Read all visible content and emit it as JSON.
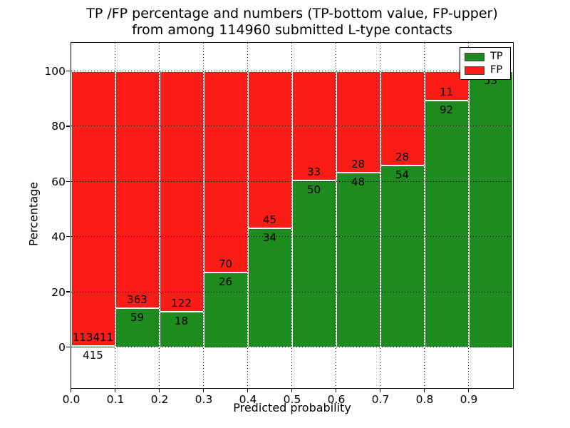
{
  "figure": {
    "title_line1": "TP /FP percentage and numbers (TP-bottom value, FP-upper)",
    "title_line2": "from among 114960 submitted L-type contacts",
    "xlabel": "Predicted probability",
    "ylabel": "Percentage"
  },
  "legend": {
    "items": [
      {
        "label": "TP",
        "color": "#1e8b1e"
      },
      {
        "label": "FP",
        "color": "#fb1d15"
      }
    ]
  },
  "chart_data": {
    "type": "bar",
    "subtype": "stacked-percentage",
    "title": "TP /FP percentage and numbers (TP-bottom value, FP-upper) from among 114960 submitted L-type contacts",
    "xlabel": "Predicted probability",
    "ylabel": "Percentage",
    "total_contacts": 114960,
    "bin_width": 0.1,
    "x_bins_start": [
      0.0,
      0.1,
      0.2,
      0.3,
      0.4,
      0.5,
      0.6,
      0.7,
      0.8,
      0.9
    ],
    "x_tick_labels": [
      "0.0",
      "0.1",
      "0.2",
      "0.3",
      "0.4",
      "0.5",
      "0.6",
      "0.7",
      "0.8",
      "0.9"
    ],
    "y_ticks": [
      0,
      20,
      40,
      60,
      80,
      100
    ],
    "ylim": [
      -14.5,
      110.5
    ],
    "grid": "dotted",
    "legend_position": "upper-right",
    "series": [
      {
        "name": "TP",
        "color": "#1e8b1e",
        "counts": [
          415,
          59,
          18,
          26,
          34,
          50,
          48,
          54,
          92,
          53
        ]
      },
      {
        "name": "FP",
        "color": "#fb1d15",
        "counts": [
          113411,
          363,
          122,
          70,
          45,
          33,
          28,
          28,
          11,
          0
        ]
      }
    ],
    "bar_number_labels": {
      "fp": [
        "113411",
        "363",
        "122",
        "70",
        "45",
        "33",
        "28",
        "28",
        "11",
        ""
      ],
      "tp": [
        "415",
        "59",
        "18",
        "26",
        "34",
        "50",
        "48",
        "54",
        "92",
        "53"
      ]
    }
  }
}
